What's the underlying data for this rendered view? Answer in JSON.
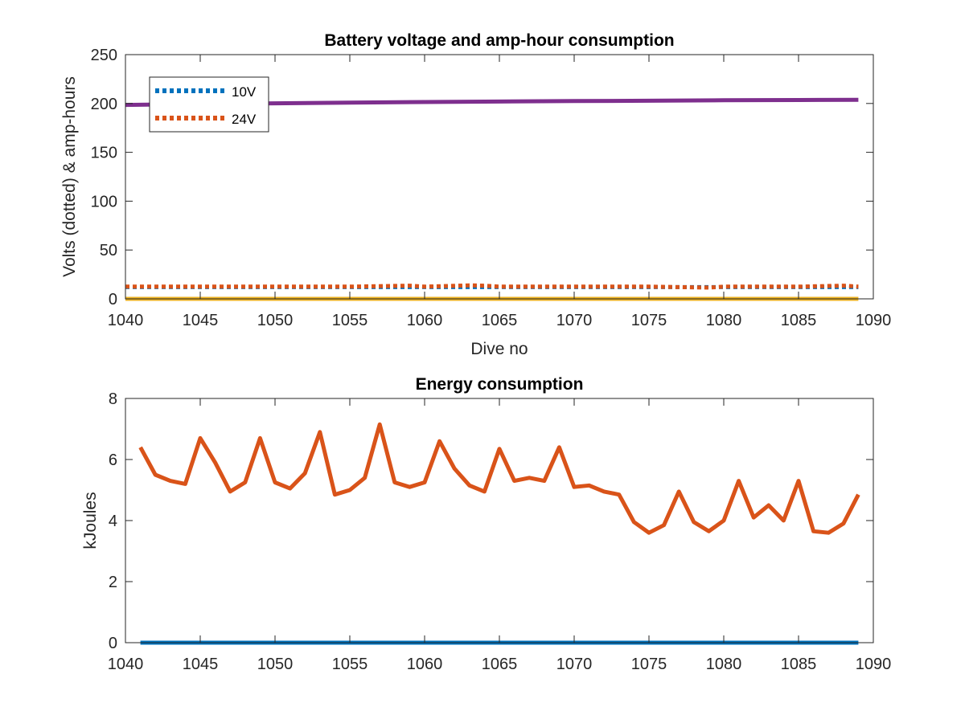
{
  "chart_data": [
    {
      "type": "line",
      "title": "Battery voltage and amp-hour consumption",
      "xlabel": "Dive no",
      "ylabel": "Volts (dotted) & amp-hours",
      "xlim": [
        1040,
        1090
      ],
      "ylim": [
        0,
        250
      ],
      "xticks": [
        1040,
        1045,
        1050,
        1055,
        1060,
        1065,
        1070,
        1075,
        1080,
        1085,
        1090
      ],
      "yticks": [
        0,
        50,
        100,
        150,
        200,
        250
      ],
      "grid": false,
      "legend": {
        "placement": "top-left",
        "entries": [
          "10V",
          "24V"
        ]
      },
      "series": [
        {
          "name": "10V",
          "color": "#0072BD",
          "style": "dotted",
          "x": [
            1040,
            1089
          ],
          "y": [
            12,
            12
          ]
        },
        {
          "name": "24V",
          "color": "#D95319",
          "style": "dotted",
          "x": [
            1040,
            1045,
            1050,
            1055,
            1059,
            1060,
            1063,
            1064,
            1065,
            1070,
            1075,
            1079,
            1080,
            1085,
            1088,
            1089
          ],
          "y": [
            12.5,
            12.5,
            12.5,
            12.5,
            13.5,
            12.5,
            13.8,
            13.5,
            12.5,
            12.5,
            12.5,
            11.5,
            12.5,
            12.5,
            13.5,
            12.5
          ]
        },
        {
          "color": "#EDB120",
          "style": "solid",
          "x": [
            1040,
            1089
          ],
          "y": [
            0,
            0
          ]
        },
        {
          "color": "#7E2F8E",
          "style": "solid",
          "x": [
            1040,
            1045,
            1050,
            1055,
            1060,
            1065,
            1070,
            1075,
            1080,
            1085,
            1089
          ],
          "y": [
            198.5,
            199.5,
            200.2,
            200.8,
            201.5,
            202,
            202.5,
            202.8,
            203.3,
            203.5,
            203.8
          ]
        }
      ]
    },
    {
      "type": "line",
      "title": "Energy consumption",
      "xlabel": "",
      "ylabel": "kJoules",
      "xlim": [
        1040,
        1090
      ],
      "ylim": [
        0,
        8
      ],
      "xticks": [
        1040,
        1045,
        1050,
        1055,
        1060,
        1065,
        1070,
        1075,
        1080,
        1085,
        1090
      ],
      "yticks": [
        0,
        2,
        4,
        6,
        8
      ],
      "grid": false,
      "series": [
        {
          "color": "#D95319",
          "style": "solid",
          "x": [
            1041,
            1042,
            1043,
            1044,
            1045,
            1046,
            1047,
            1048,
            1049,
            1050,
            1051,
            1052,
            1053,
            1054,
            1055,
            1056,
            1057,
            1058,
            1059,
            1060,
            1061,
            1062,
            1063,
            1064,
            1065,
            1066,
            1067,
            1068,
            1069,
            1070,
            1071,
            1072,
            1073,
            1074,
            1075,
            1076,
            1077,
            1078,
            1079,
            1080,
            1081,
            1082,
            1083,
            1084,
            1085,
            1086,
            1087,
            1088,
            1089
          ],
          "y": [
            6.4,
            5.5,
            5.3,
            5.2,
            6.7,
            5.9,
            4.95,
            5.25,
            6.7,
            5.25,
            5.05,
            5.55,
            6.9,
            4.85,
            5.0,
            5.4,
            7.15,
            5.25,
            5.1,
            5.25,
            6.6,
            5.7,
            5.15,
            4.95,
            6.35,
            5.3,
            5.4,
            5.3,
            6.4,
            5.1,
            5.15,
            4.95,
            4.85,
            3.95,
            3.6,
            3.85,
            4.95,
            3.95,
            3.65,
            4.0,
            5.3,
            4.1,
            4.5,
            4.0,
            5.3,
            3.65,
            3.6,
            3.9,
            4.85
          ]
        },
        {
          "color": "#0072BD",
          "style": "solid",
          "x": [
            1041,
            1089
          ],
          "y": [
            0,
            0
          ]
        }
      ]
    }
  ]
}
